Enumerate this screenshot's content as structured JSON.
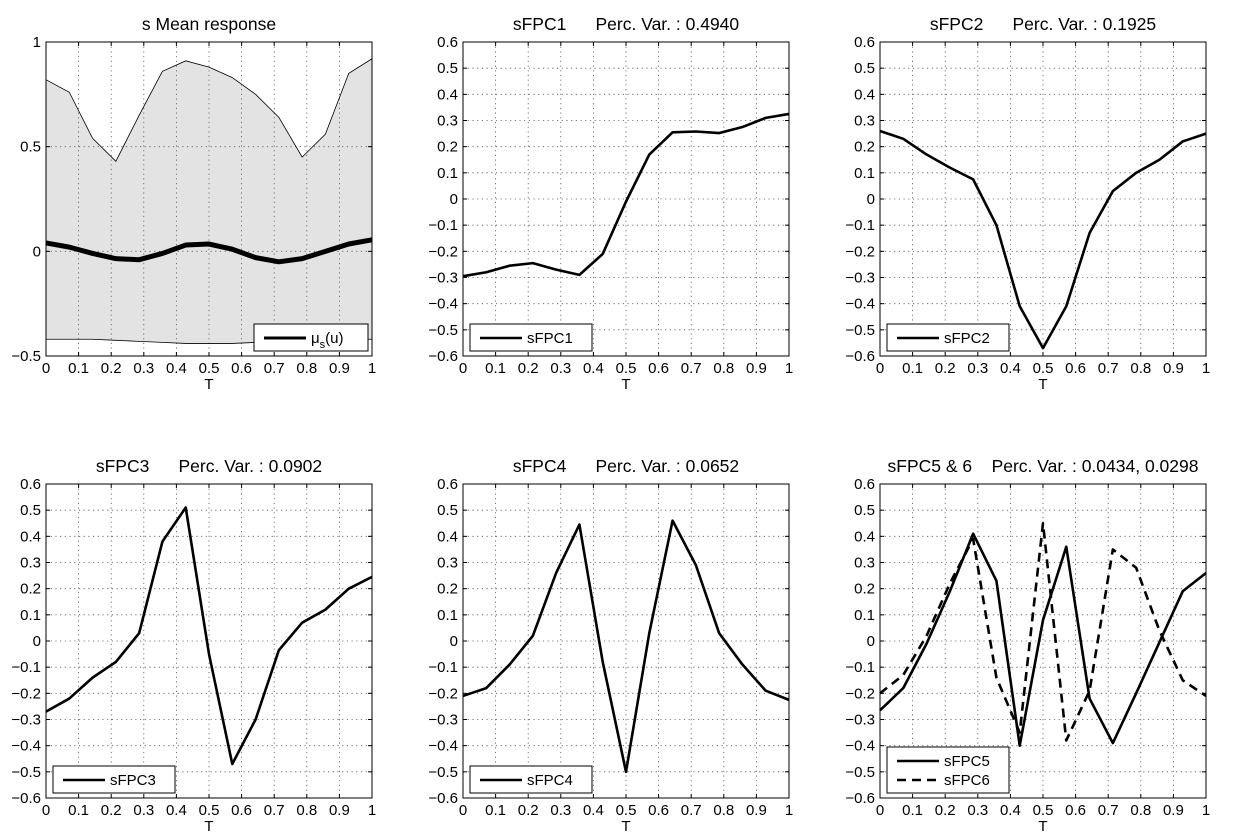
{
  "chart_data": [
    {
      "id": "mean",
      "type": "area",
      "title": "s Mean response",
      "xlabel": "T",
      "ylabel": "",
      "xlim": [
        0,
        1
      ],
      "ylim": [
        -0.5,
        1
      ],
      "xticks": [
        "0",
        "0.1",
        "0.2",
        "0.3",
        "0.4",
        "0.5",
        "0.6",
        "0.7",
        "0.8",
        "0.9",
        "1"
      ],
      "yticks": [
        "-0.5",
        "0",
        "0.5",
        "1"
      ],
      "grid": true,
      "legend_position": "bottom-right",
      "band_color": "#e3e3e3",
      "x": [
        0,
        0.0714,
        0.1429,
        0.2143,
        0.2857,
        0.3571,
        0.4286,
        0.5,
        0.5714,
        0.6429,
        0.7143,
        0.7857,
        0.8571,
        0.9286,
        1
      ],
      "band_upper": [
        0.82,
        0.76,
        0.54,
        0.43,
        0.65,
        0.86,
        0.91,
        0.88,
        0.83,
        0.75,
        0.64,
        0.45,
        0.56,
        0.85,
        0.92
      ],
      "band_lower": [
        -0.42,
        -0.42,
        -0.42,
        -0.425,
        -0.43,
        -0.435,
        -0.44,
        -0.44,
        -0.44,
        -0.435,
        -0.43,
        -0.425,
        -0.42,
        -0.42,
        -0.42
      ],
      "series": [
        {
          "name": "μs(u)",
          "style": "thick",
          "values": [
            0.04,
            0.02,
            -0.01,
            -0.035,
            -0.04,
            -0.01,
            0.03,
            0.035,
            0.01,
            -0.03,
            -0.05,
            -0.035,
            0.0,
            0.035,
            0.055
          ]
        }
      ]
    },
    {
      "id": "fpc1",
      "type": "line",
      "title": "sFPC1      Perc. Var. : 0.4940",
      "xlabel": "T",
      "ylabel": "",
      "xlim": [
        0,
        1
      ],
      "ylim": [
        -0.6,
        0.6
      ],
      "xticks": [
        "0",
        "0.1",
        "0.2",
        "0.3",
        "0.4",
        "0.5",
        "0.6",
        "0.7",
        "0.8",
        "0.9",
        "1"
      ],
      "yticks": [
        "-0.6",
        "-0.5",
        "-0.4",
        "-0.3",
        "-0.2",
        "-0.1",
        "0",
        "0.1",
        "0.2",
        "0.3",
        "0.4",
        "0.5",
        "0.6"
      ],
      "grid": true,
      "legend_position": "bottom-left",
      "x": [
        0,
        0.0714,
        0.1429,
        0.2143,
        0.2857,
        0.3571,
        0.4286,
        0.5,
        0.5714,
        0.6429,
        0.7143,
        0.7857,
        0.8571,
        0.9286,
        1
      ],
      "series": [
        {
          "name": "sFPC1",
          "style": "solid",
          "values": [
            -0.295,
            -0.28,
            -0.255,
            -0.245,
            -0.27,
            -0.29,
            -0.21,
            -0.01,
            0.17,
            0.255,
            0.258,
            0.252,
            0.275,
            0.31,
            0.325
          ]
        }
      ]
    },
    {
      "id": "fpc2",
      "type": "line",
      "title": "sFPC2      Perc. Var. : 0.1925",
      "xlabel": "T",
      "ylabel": "",
      "xlim": [
        0,
        1
      ],
      "ylim": [
        -0.6,
        0.6
      ],
      "xticks": [
        "0",
        "0.1",
        "0.2",
        "0.3",
        "0.4",
        "0.5",
        "0.6",
        "0.7",
        "0.8",
        "0.9",
        "1"
      ],
      "yticks": [
        "-0.6",
        "-0.5",
        "-0.4",
        "-0.3",
        "-0.2",
        "-0.1",
        "0",
        "0.1",
        "0.2",
        "0.3",
        "0.4",
        "0.5",
        "0.6"
      ],
      "grid": true,
      "legend_position": "bottom-left",
      "x": [
        0,
        0.0714,
        0.1429,
        0.2143,
        0.2857,
        0.3571,
        0.4286,
        0.5,
        0.5714,
        0.6429,
        0.7143,
        0.7857,
        0.8571,
        0.9286,
        1
      ],
      "series": [
        {
          "name": "sFPC2",
          "style": "solid",
          "values": [
            0.26,
            0.23,
            0.17,
            0.12,
            0.075,
            -0.1,
            -0.41,
            -0.57,
            -0.41,
            -0.13,
            0.03,
            0.1,
            0.15,
            0.22,
            0.25
          ]
        }
      ]
    },
    {
      "id": "fpc3",
      "type": "line",
      "title": "sFPC3      Perc. Var. : 0.0902",
      "xlabel": "T",
      "ylabel": "",
      "xlim": [
        0,
        1
      ],
      "ylim": [
        -0.6,
        0.6
      ],
      "xticks": [
        "0",
        "0.1",
        "0.2",
        "0.3",
        "0.4",
        "0.5",
        "0.6",
        "0.7",
        "0.8",
        "0.9",
        "1"
      ],
      "yticks": [
        "-0.6",
        "-0.5",
        "-0.4",
        "-0.3",
        "-0.2",
        "-0.1",
        "0",
        "0.1",
        "0.2",
        "0.3",
        "0.4",
        "0.5",
        "0.6"
      ],
      "grid": true,
      "legend_position": "bottom-left",
      "x": [
        0,
        0.0714,
        0.1429,
        0.2143,
        0.2857,
        0.3571,
        0.4286,
        0.5,
        0.5714,
        0.6429,
        0.7143,
        0.7857,
        0.8571,
        0.9286,
        1
      ],
      "series": [
        {
          "name": "sFPC3",
          "style": "solid",
          "values": [
            -0.27,
            -0.22,
            -0.14,
            -0.08,
            0.03,
            0.38,
            0.51,
            -0.05,
            -0.47,
            -0.3,
            -0.035,
            0.07,
            0.12,
            0.2,
            0.245
          ]
        }
      ]
    },
    {
      "id": "fpc4",
      "type": "line",
      "title": "sFPC4      Perc. Var. : 0.0652",
      "xlabel": "T",
      "ylabel": "",
      "xlim": [
        0,
        1
      ],
      "ylim": [
        -0.6,
        0.6
      ],
      "xticks": [
        "0",
        "0.1",
        "0.2",
        "0.3",
        "0.4",
        "0.5",
        "0.6",
        "0.7",
        "0.8",
        "0.9",
        "1"
      ],
      "yticks": [
        "-0.6",
        "-0.5",
        "-0.4",
        "-0.3",
        "-0.2",
        "-0.1",
        "0",
        "0.1",
        "0.2",
        "0.3",
        "0.4",
        "0.5",
        "0.6"
      ],
      "grid": true,
      "legend_position": "bottom-left",
      "x": [
        0,
        0.0714,
        0.1429,
        0.2143,
        0.2857,
        0.3571,
        0.4286,
        0.5,
        0.5714,
        0.6429,
        0.7143,
        0.7857,
        0.8571,
        0.9286,
        1
      ],
      "series": [
        {
          "name": "sFPC4",
          "style": "solid",
          "values": [
            -0.21,
            -0.18,
            -0.09,
            0.02,
            0.26,
            0.445,
            -0.08,
            -0.5,
            0.03,
            0.46,
            0.29,
            0.03,
            -0.09,
            -0.19,
            -0.225
          ]
        }
      ]
    },
    {
      "id": "fpc56",
      "type": "line",
      "title": "sFPC5 & 6    Perc. Var. : 0.0434, 0.0298",
      "xlabel": "T",
      "ylabel": "",
      "xlim": [
        0,
        1
      ],
      "ylim": [
        -0.6,
        0.6
      ],
      "xticks": [
        "0",
        "0.1",
        "0.2",
        "0.3",
        "0.4",
        "0.5",
        "0.6",
        "0.7",
        "0.8",
        "0.9",
        "1"
      ],
      "yticks": [
        "-0.6",
        "-0.5",
        "-0.4",
        "-0.3",
        "-0.2",
        "-0.1",
        "0",
        "0.1",
        "0.2",
        "0.3",
        "0.4",
        "0.5",
        "0.6"
      ],
      "grid": true,
      "legend_position": "bottom-left",
      "x": [
        0,
        0.0714,
        0.1429,
        0.2143,
        0.2857,
        0.3571,
        0.4286,
        0.5,
        0.5714,
        0.6429,
        0.7143,
        0.7857,
        0.8571,
        0.9286,
        1
      ],
      "series": [
        {
          "name": "sFPC5",
          "style": "solid",
          "values": [
            -0.265,
            -0.18,
            -0.01,
            0.19,
            0.41,
            0.23,
            -0.4,
            0.08,
            0.36,
            -0.22,
            -0.39,
            -0.2,
            -0.005,
            0.19,
            0.26
          ]
        },
        {
          "name": "sFPC6",
          "style": "dashed",
          "values": [
            -0.2,
            -0.13,
            0.02,
            0.22,
            0.39,
            -0.14,
            -0.35,
            0.45,
            -0.38,
            -0.19,
            0.35,
            0.28,
            0.04,
            -0.15,
            -0.21
          ]
        }
      ]
    }
  ]
}
